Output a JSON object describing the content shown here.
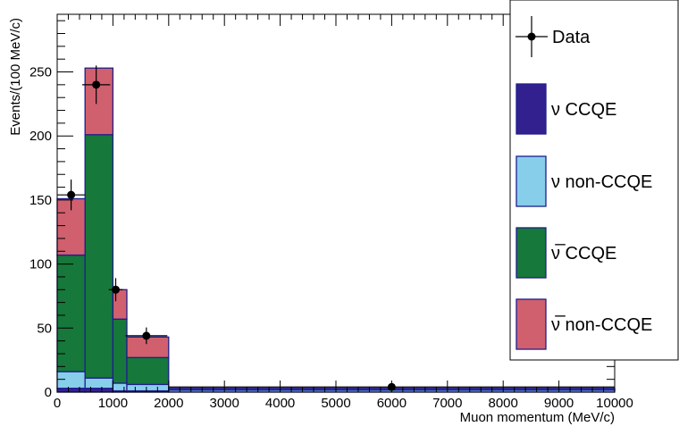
{
  "chart_data": {
    "type": "bar",
    "stacked": true,
    "bin_edges": [
      0,
      500,
      1000,
      1250,
      2000,
      10000
    ],
    "xlabel": "Muon momentum (MeV/c)",
    "ylabel": "Events/(100 MeV/c)",
    "xlim": [
      0,
      10000
    ],
    "ylim": [
      0,
      295
    ],
    "x_ticks": [
      0,
      1000,
      2000,
      3000,
      4000,
      5000,
      6000,
      7000,
      8000,
      9000,
      10000
    ],
    "y_ticks": [
      0,
      50,
      100,
      150,
      200,
      250
    ],
    "legend_position": "right",
    "series": [
      {
        "name": "ν CCQE",
        "color": "#33208f",
        "values": [
          3,
          3,
          1,
          1,
          0
        ]
      },
      {
        "name": "ν non-CCQE",
        "color": "#87ceeb",
        "values": [
          13,
          8,
          6,
          5,
          1.5
        ]
      },
      {
        "name": "ν̅ CCQE",
        "color": "#16783a",
        "values": [
          91,
          190,
          50,
          21,
          0.5
        ]
      },
      {
        "name": "ν̅ non-CCQE",
        "color": "#d0606e",
        "values": [
          44,
          52,
          23,
          16,
          1
        ]
      }
    ],
    "data_points": {
      "name": "Data",
      "x": [
        250,
        700,
        1050,
        1600,
        6000
      ],
      "y": [
        154,
        240,
        80,
        44,
        4
      ],
      "yerr": [
        12,
        15,
        9,
        6.5,
        2
      ],
      "xerr": [
        250,
        250,
        125,
        375,
        4000
      ]
    }
  }
}
